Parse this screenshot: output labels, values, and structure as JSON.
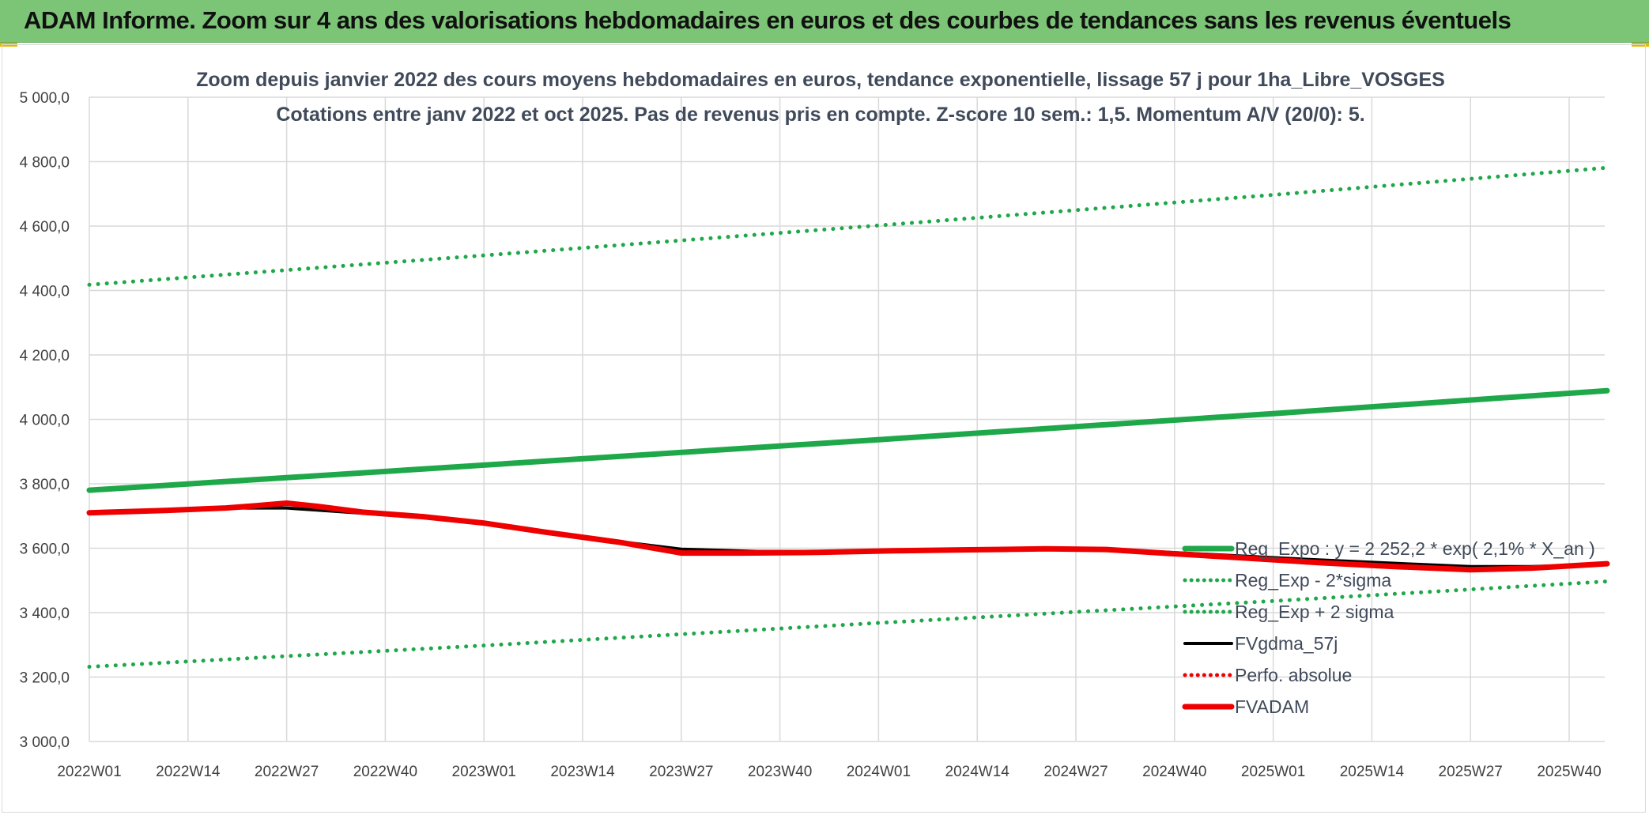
{
  "banner": {
    "title": "ADAM Informe. Zoom sur 4 ans des valorisations hebdomadaires en euros et des courbes de tendances sans les revenus éventuels"
  },
  "colors": {
    "banner_bg": "#7cc576",
    "trend_green": "#1fa84a",
    "black_series": "#000000",
    "red_series": "#ee0000",
    "grid": "#d9d9d9"
  },
  "chart_data": {
    "type": "line",
    "title_line1": "Zoom depuis janvier 2022 des cours moyens hebdomadaires en euros, tendance exponentielle, lissage 57 j pour 1ha_Libre_VOSGES",
    "title_line2": "Cotations entre janv 2022 et oct 2025. Pas de revenus pris en compte. Z-score 10 sem.: 1,5. Momentum A/V (20/0): 5.",
    "x_tick_labels": [
      "2022W01",
      "2022W14",
      "2022W27",
      "2022W40",
      "2023W01",
      "2023W14",
      "2023W27",
      "2023W40",
      "2024W01",
      "2024W14",
      "2024W27",
      "2024W40",
      "2025W01",
      "2025W14",
      "2025W27",
      "2025W40"
    ],
    "x_tick_index": [
      0,
      13,
      26,
      39,
      52,
      65,
      78,
      91,
      104,
      117,
      130,
      143,
      156,
      169,
      182,
      195
    ],
    "x_max_index": 200,
    "y_tick_labels": [
      "3 000,0",
      "3 200,0",
      "3 400,0",
      "3 600,0",
      "3 800,0",
      "4 000,0",
      "4 200,0",
      "4 400,0",
      "4 600,0",
      "4 800,0",
      "5 000,0"
    ],
    "ylim": [
      3000,
      5000
    ],
    "y_step": 200,
    "grid": true,
    "legend_position": "right",
    "series": [
      {
        "name": "Reg_Expo : y = 2 252,2 * exp( 2,1% *  X_an )",
        "style": "solid-thick",
        "color": "#1fa84a",
        "points": [
          [
            0,
            3780
          ],
          [
            52,
            3858
          ],
          [
            104,
            3937
          ],
          [
            156,
            4018
          ],
          [
            200,
            4089
          ]
        ]
      },
      {
        "name": "Reg_Exp - 2*sigma",
        "style": "dotted",
        "color": "#1fa84a",
        "points": [
          [
            0,
            3232
          ],
          [
            52,
            3298
          ],
          [
            104,
            3368
          ],
          [
            156,
            3436
          ],
          [
            200,
            3497
          ]
        ]
      },
      {
        "name": "Reg_Exp + 2 sigma",
        "style": "dotted",
        "color": "#1fa84a",
        "points": [
          [
            0,
            4418
          ],
          [
            52,
            4509
          ],
          [
            104,
            4602
          ],
          [
            156,
            4697
          ],
          [
            200,
            4781
          ]
        ]
      },
      {
        "name": "FVgdma_57j",
        "style": "solid",
        "color": "#000000",
        "points": [
          [
            0,
            3710
          ],
          [
            10,
            3718
          ],
          [
            18,
            3725
          ],
          [
            26,
            3725
          ],
          [
            34,
            3712
          ],
          [
            44,
            3695
          ],
          [
            52,
            3675
          ],
          [
            60,
            3648
          ],
          [
            70,
            3620
          ],
          [
            78,
            3597
          ],
          [
            88,
            3590
          ],
          [
            100,
            3590
          ],
          [
            110,
            3593
          ],
          [
            120,
            3597
          ],
          [
            130,
            3598
          ],
          [
            140,
            3590
          ],
          [
            150,
            3578
          ],
          [
            160,
            3566
          ],
          [
            170,
            3555
          ],
          [
            182,
            3543
          ],
          [
            190,
            3543
          ],
          [
            200,
            3550
          ]
        ]
      },
      {
        "name": "Perfo. absolue",
        "style": "dotted",
        "color": "#ee0000",
        "points": []
      },
      {
        "name": "FVADAM",
        "style": "solid-thick",
        "color": "#ee0000",
        "points": [
          [
            0,
            3710
          ],
          [
            10,
            3717
          ],
          [
            18,
            3725
          ],
          [
            22,
            3732
          ],
          [
            26,
            3740
          ],
          [
            30,
            3730
          ],
          [
            36,
            3712
          ],
          [
            44,
            3698
          ],
          [
            52,
            3678
          ],
          [
            60,
            3650
          ],
          [
            70,
            3618
          ],
          [
            78,
            3585
          ],
          [
            86,
            3585
          ],
          [
            96,
            3587
          ],
          [
            106,
            3592
          ],
          [
            116,
            3595
          ],
          [
            126,
            3598
          ],
          [
            134,
            3596
          ],
          [
            142,
            3584
          ],
          [
            152,
            3570
          ],
          [
            162,
            3555
          ],
          [
            172,
            3543
          ],
          [
            182,
            3533
          ],
          [
            190,
            3538
          ],
          [
            200,
            3552
          ]
        ]
      }
    ]
  }
}
